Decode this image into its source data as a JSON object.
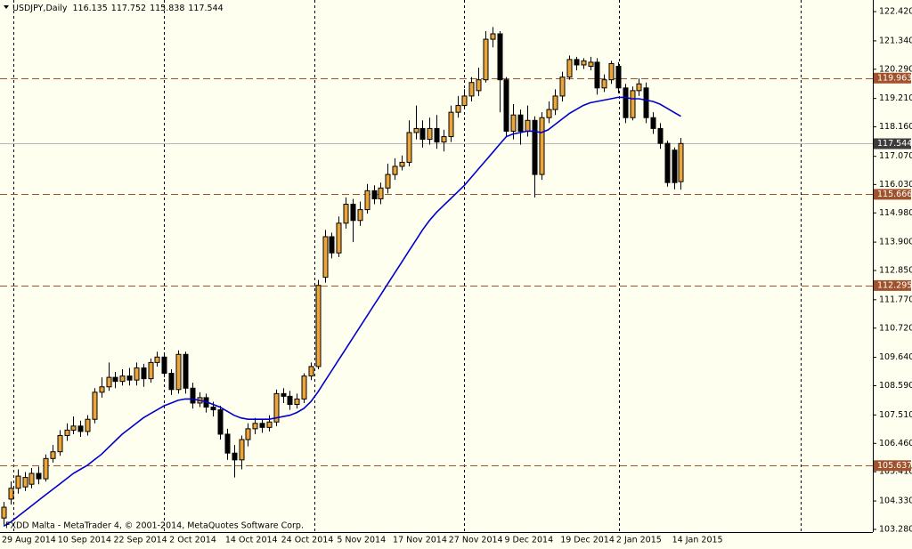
{
  "chart_data": {
    "type": "candlestick",
    "symbol": "USDJPY,Daily",
    "footer": "FXDD Malta - MetaTrader 4, © 2001-2014, MetaQuotes Software Corp.",
    "categories": [
      "29 Aug 2014",
      null,
      null,
      null,
      null,
      null,
      null,
      null,
      "10 Sep 2014",
      null,
      null,
      null,
      null,
      null,
      null,
      null,
      "22 Sep 2014",
      null,
      null,
      null,
      null,
      null,
      null,
      null,
      "2 Oct 2014",
      null,
      null,
      null,
      null,
      null,
      null,
      null,
      "14 Oct 2014",
      null,
      null,
      null,
      null,
      null,
      null,
      null,
      "24 Oct 2014",
      null,
      null,
      null,
      null,
      null,
      null,
      null,
      "5 Nov 2014",
      null,
      null,
      null,
      null,
      null,
      null,
      null,
      "17 Nov 2014",
      null,
      null,
      null,
      null,
      null,
      null,
      null,
      "27 Nov 2014",
      null,
      null,
      null,
      null,
      null,
      null,
      null,
      "9 Dec 2014",
      null,
      null,
      null,
      null,
      null,
      null,
      null,
      "19 Dec 2014",
      null,
      null,
      null,
      null,
      null,
      null,
      null,
      "2 Jan 2015",
      null,
      null,
      null,
      null,
      null,
      null,
      null,
      "14 Jan 2015",
      null
    ],
    "open": [
      103.7,
      104.4,
      104.8,
      104.85,
      104.95,
      105.35,
      105.15,
      105.9,
      106.15,
      106.75,
      106.95,
      107.1,
      106.9,
      107.35,
      108.35,
      108.55,
      108.9,
      108.75,
      108.95,
      108.8,
      109.25,
      108.85,
      109.45,
      109.65,
      109.05,
      108.45,
      109.75,
      108.5,
      107.95,
      108.15,
      107.8,
      107.7,
      106.8,
      106.1,
      105.85,
      106.6,
      107.0,
      107.2,
      107.05,
      107.25,
      108.3,
      108.2,
      107.9,
      108.1,
      108.95,
      109.3,
      112.6,
      114.1,
      113.5,
      114.6,
      115.3,
      114.7,
      115.1,
      115.8,
      115.5,
      115.9,
      116.4,
      116.7,
      116.85,
      117.95,
      118.1,
      117.7,
      118.1,
      117.6,
      117.8,
      118.7,
      118.95,
      119.3,
      119.5,
      119.9,
      121.4,
      121.6,
      119.9,
      118.0,
      118.6,
      118.0,
      118.4,
      116.4,
      118.5,
      118.8,
      119.3,
      120.0,
      120.65,
      120.45,
      120.4,
      120.55,
      119.6,
      119.9,
      120.4,
      119.6,
      118.5,
      119.5,
      119.6,
      118.5,
      118.1,
      117.55,
      117.3,
      116.135
    ],
    "high": [
      104.3,
      105.05,
      105.5,
      105.4,
      105.55,
      105.6,
      106.05,
      106.4,
      106.95,
      107.2,
      107.45,
      107.3,
      107.5,
      108.5,
      108.9,
      109.45,
      109.1,
      109.2,
      109.25,
      109.45,
      109.4,
      109.6,
      109.85,
      109.8,
      109.2,
      109.9,
      109.85,
      108.7,
      108.35,
      108.3,
      108.0,
      107.85,
      107.0,
      106.4,
      106.75,
      107.2,
      107.4,
      107.35,
      107.5,
      108.45,
      108.5,
      108.4,
      108.3,
      109.05,
      109.45,
      112.5,
      114.35,
      114.25,
      114.85,
      115.55,
      115.5,
      115.4,
      116.05,
      116.0,
      116.1,
      116.8,
      117.0,
      117.1,
      118.4,
      118.95,
      118.4,
      118.5,
      118.6,
      118.05,
      118.95,
      119.3,
      119.55,
      120.0,
      120.35,
      121.7,
      121.85,
      121.7,
      120.0,
      119.0,
      118.8,
      118.95,
      118.55,
      118.7,
      119.1,
      119.55,
      120.2,
      120.8,
      120.75,
      120.7,
      120.75,
      120.7,
      120.1,
      120.6,
      120.55,
      119.75,
      119.65,
      119.95,
      119.8,
      118.7,
      118.3,
      117.65,
      117.4,
      117.752
    ],
    "low": [
      103.45,
      104.2,
      104.6,
      104.7,
      104.8,
      104.95,
      105.05,
      105.75,
      106.0,
      106.55,
      106.8,
      106.7,
      106.75,
      107.2,
      108.15,
      108.4,
      108.5,
      108.6,
      108.6,
      108.6,
      108.55,
      108.7,
      109.3,
      108.9,
      108.25,
      108.3,
      108.3,
      107.75,
      107.8,
      107.6,
      107.45,
      106.6,
      105.85,
      105.2,
      105.5,
      106.35,
      106.8,
      106.85,
      106.9,
      107.1,
      107.95,
      107.7,
      107.75,
      107.95,
      108.8,
      109.2,
      112.4,
      113.3,
      113.35,
      114.4,
      113.9,
      114.5,
      114.95,
      115.3,
      115.3,
      115.7,
      116.2,
      116.55,
      116.7,
      117.7,
      117.4,
      117.5,
      117.35,
      117.25,
      117.6,
      118.5,
      118.8,
      119.1,
      119.3,
      119.8,
      121.1,
      118.7,
      117.8,
      117.7,
      117.5,
      117.8,
      115.55,
      116.2,
      118.3,
      118.6,
      119.1,
      119.9,
      120.25,
      120.3,
      120.25,
      119.35,
      119.45,
      119.75,
      119.4,
      118.3,
      118.4,
      119.3,
      118.3,
      117.9,
      117.35,
      115.95,
      115.85,
      115.838
    ],
    "close": [
      104.1,
      104.8,
      105.25,
      105.2,
      105.35,
      105.15,
      105.9,
      106.15,
      106.75,
      106.95,
      107.1,
      106.9,
      107.35,
      108.35,
      108.55,
      108.9,
      108.75,
      108.95,
      108.8,
      109.25,
      108.85,
      109.45,
      109.65,
      109.05,
      108.45,
      109.75,
      108.5,
      107.95,
      108.15,
      107.8,
      107.7,
      106.8,
      106.1,
      105.85,
      106.6,
      107.0,
      107.2,
      107.05,
      107.25,
      108.3,
      108.2,
      107.9,
      108.1,
      108.95,
      109.3,
      112.3,
      114.1,
      113.5,
      114.6,
      115.3,
      114.7,
      115.1,
      115.8,
      115.5,
      115.9,
      116.4,
      116.7,
      116.85,
      117.95,
      118.1,
      117.7,
      118.1,
      117.6,
      117.8,
      118.7,
      118.95,
      119.3,
      119.8,
      119.9,
      121.4,
      121.6,
      119.9,
      118.0,
      118.6,
      118.0,
      118.4,
      116.4,
      118.5,
      118.8,
      119.3,
      120.0,
      120.65,
      120.45,
      120.6,
      120.55,
      119.6,
      119.9,
      120.5,
      119.6,
      118.5,
      119.5,
      119.75,
      118.5,
      118.1,
      117.55,
      116.1,
      116.1,
      117.544
    ],
    "up_color": "#eba53a",
    "down_color": "#000000",
    "moving_average": {
      "color": "#0000cc",
      "values": [
        103.4,
        103.55,
        103.75,
        103.95,
        104.15,
        104.35,
        104.55,
        104.75,
        104.95,
        105.15,
        105.35,
        105.5,
        105.65,
        105.85,
        106.05,
        106.3,
        106.55,
        106.8,
        107.0,
        107.2,
        107.4,
        107.55,
        107.7,
        107.85,
        107.95,
        108.05,
        108.1,
        108.1,
        108.05,
        108.0,
        107.9,
        107.8,
        107.65,
        107.5,
        107.4,
        107.35,
        107.35,
        107.35,
        107.35,
        107.4,
        107.45,
        107.5,
        107.6,
        107.75,
        108.0,
        108.35,
        108.75,
        109.15,
        109.55,
        109.95,
        110.35,
        110.75,
        111.15,
        111.55,
        111.95,
        112.35,
        112.75,
        113.15,
        113.55,
        113.95,
        114.35,
        114.7,
        115.0,
        115.25,
        115.5,
        115.75,
        116.0,
        116.3,
        116.6,
        116.9,
        117.2,
        117.5,
        117.8,
        117.9,
        117.95,
        118.0,
        118.0,
        117.95,
        118.05,
        118.25,
        118.45,
        118.65,
        118.8,
        118.95,
        119.05,
        119.1,
        119.15,
        119.2,
        119.25,
        119.25,
        119.2,
        119.2,
        119.15,
        119.1,
        119.0,
        118.85,
        118.7,
        118.55
      ]
    },
    "levels": [
      119.963,
      115.666,
      112.295,
      105.637
    ],
    "level_color": "#a0522d",
    "ylim": [
      103.18,
      122.85
    ],
    "yticks": [
      {
        "value": 122.42,
        "label": "122.420"
      },
      {
        "value": 121.34,
        "label": "121.340"
      },
      {
        "value": 120.29,
        "label": "120.290"
      },
      {
        "value": 119.21,
        "label": "119.210"
      },
      {
        "value": 118.16,
        "label": "118.160"
      },
      {
        "value": 117.07,
        "label": "117.070"
      },
      {
        "value": 116.03,
        "label": "116.030"
      },
      {
        "value": 114.98,
        "label": "114.980"
      },
      {
        "value": 113.9,
        "label": "113.900"
      },
      {
        "value": 112.85,
        "label": "112.850"
      },
      {
        "value": 111.77,
        "label": "111.770"
      },
      {
        "value": 110.72,
        "label": "110.720"
      },
      {
        "value": 109.64,
        "label": "109.640"
      },
      {
        "value": 108.59,
        "label": "108.590"
      },
      {
        "value": 107.51,
        "label": "107.510"
      },
      {
        "value": 106.46,
        "label": "106.460"
      },
      {
        "value": 105.41,
        "label": "105.410"
      },
      {
        "value": 104.33,
        "label": "104.330"
      },
      {
        "value": 103.28,
        "label": "103.280"
      }
    ]
  }
}
